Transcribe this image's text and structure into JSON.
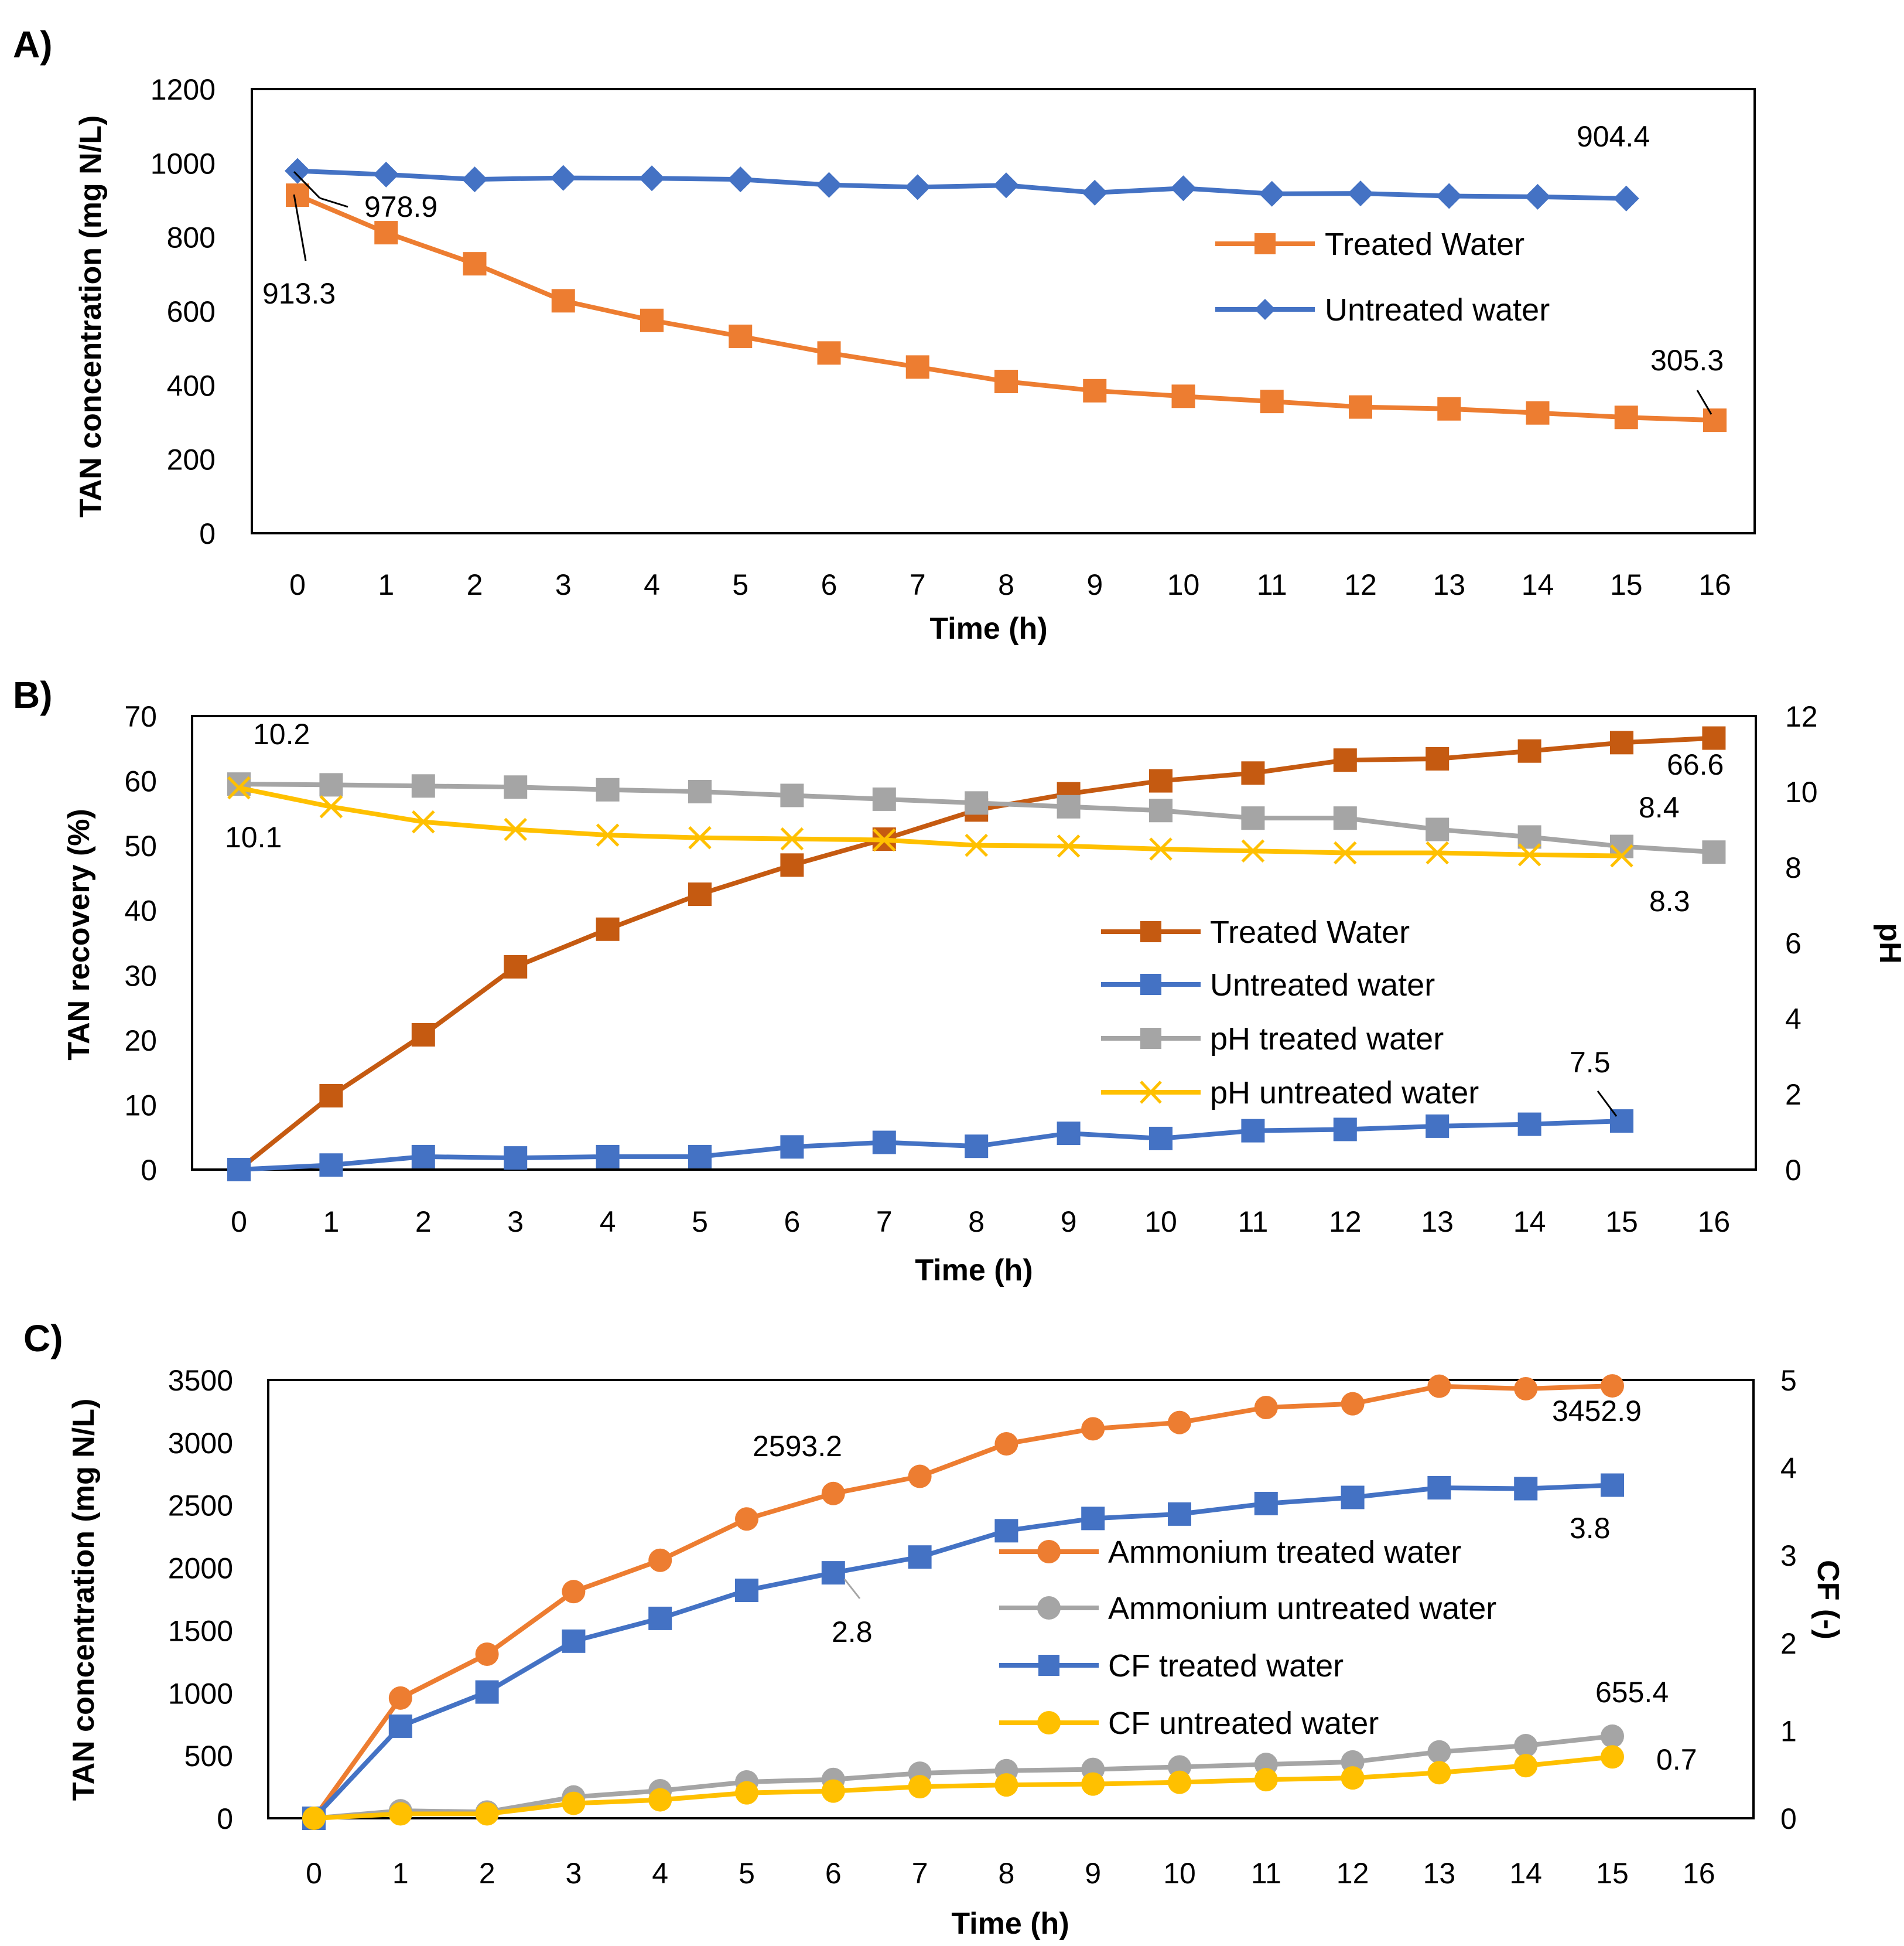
{
  "chart_data": [
    {
      "panel": "A)",
      "type": "line",
      "xlabel": "Time (h)",
      "ylabel": "TAN concentration (mg N/L)",
      "ylim": [
        0,
        1200
      ],
      "yticks": [
        0,
        200,
        400,
        600,
        800,
        1000,
        1200
      ],
      "xticks": [
        0,
        1,
        2,
        3,
        4,
        5,
        6,
        7,
        8,
        9,
        10,
        11,
        12,
        13,
        14,
        15,
        16
      ],
      "legend_position": "upper-right",
      "series": [
        {
          "name": "Treated Water",
          "color": "#ED7D31",
          "marker": "square",
          "x": [
            0,
            1,
            2,
            3,
            4,
            5,
            6,
            7,
            8,
            9,
            10,
            11,
            12,
            13,
            14,
            15,
            16
          ],
          "values": [
            913.3,
            812,
            728,
            628,
            575,
            532,
            487,
            449,
            410,
            385,
            370,
            356,
            341,
            336,
            325,
            313,
            305.3
          ]
        },
        {
          "name": "Untreated water",
          "color": "#4472C4",
          "marker": "diamond",
          "x": [
            0,
            1,
            2,
            3,
            4,
            5,
            6,
            7,
            8,
            9,
            10,
            11,
            12,
            13,
            14,
            15
          ],
          "values": [
            978.9,
            969,
            956,
            960,
            959,
            956,
            941,
            935,
            940,
            920,
            932,
            917,
            918,
            911,
            909,
            904.4
          ]
        }
      ],
      "annotations": [
        "978.9",
        "913.3",
        "904.4",
        "305.3"
      ]
    },
    {
      "panel": "B)",
      "type": "line",
      "xlabel": "Time (h)",
      "ylabel": "TAN recovery (%)",
      "y2label": "pH",
      "ylim": [
        0,
        70
      ],
      "y2lim": [
        0,
        12
      ],
      "yticks": [
        0,
        10,
        20,
        30,
        40,
        50,
        60,
        70
      ],
      "y2ticks": [
        0,
        2,
        4,
        6,
        8,
        10,
        12
      ],
      "xticks": [
        0,
        1,
        2,
        3,
        4,
        5,
        6,
        7,
        8,
        9,
        10,
        11,
        12,
        13,
        14,
        15,
        16
      ],
      "legend_position": "center-right",
      "series": [
        {
          "name": "Treated Water",
          "color": "#C55A11",
          "marker": "square",
          "axis": "left",
          "x": [
            0,
            1,
            2,
            3,
            4,
            5,
            6,
            7,
            8,
            9,
            10,
            11,
            12,
            13,
            14,
            15,
            16
          ],
          "values": [
            0,
            11.4,
            20.8,
            31.3,
            37.1,
            42.5,
            47.0,
            51.0,
            55.5,
            58.0,
            60.0,
            61.2,
            63.2,
            63.4,
            64.6,
            65.9,
            66.6
          ]
        },
        {
          "name": "Untreated water",
          "color": "#4472C4",
          "marker": "square",
          "axis": "left",
          "x": [
            0,
            1,
            2,
            3,
            4,
            5,
            6,
            7,
            8,
            9,
            10,
            11,
            12,
            13,
            14,
            15
          ],
          "values": [
            0,
            0.7,
            2.0,
            1.8,
            2.0,
            2.0,
            3.5,
            4.2,
            3.6,
            5.6,
            4.8,
            6.0,
            6.2,
            6.7,
            7.0,
            7.5
          ]
        },
        {
          "name": "pH treated water",
          "color": "#A5A5A5",
          "marker": "square",
          "axis": "right",
          "x": [
            0,
            1,
            2,
            3,
            4,
            5,
            6,
            7,
            8,
            9,
            10,
            11,
            12,
            13,
            14,
            15,
            16
          ],
          "values": [
            10.2,
            10.18,
            10.15,
            10.12,
            10.05,
            10.0,
            9.9,
            9.8,
            9.7,
            9.6,
            9.5,
            9.3,
            9.3,
            9.0,
            8.8,
            8.55,
            8.4
          ]
        },
        {
          "name": "pH untreated water",
          "color": "#FFC000",
          "marker": "x",
          "axis": "right",
          "x": [
            0,
            1,
            2,
            3,
            4,
            5,
            6,
            7,
            8,
            9,
            10,
            11,
            12,
            13,
            14,
            15
          ],
          "values": [
            10.1,
            9.6,
            9.2,
            9.0,
            8.85,
            8.78,
            8.75,
            8.72,
            8.58,
            8.56,
            8.48,
            8.43,
            8.38,
            8.38,
            8.33,
            8.3
          ]
        }
      ],
      "annotations": [
        "10.2",
        "10.1",
        "66.6",
        "8.4",
        "8.3",
        "7.5"
      ]
    },
    {
      "panel": "C)",
      "type": "line",
      "xlabel": "Time (h)",
      "ylabel": "TAN concentration (mg N/L)",
      "y2label": "CF (-)",
      "ylim": [
        0,
        3500
      ],
      "y2lim": [
        0,
        5
      ],
      "yticks": [
        0,
        500,
        1000,
        1500,
        2000,
        2500,
        3000,
        3500
      ],
      "y2ticks": [
        0,
        1,
        2,
        3,
        4,
        5
      ],
      "xticks": [
        0,
        1,
        2,
        3,
        4,
        5,
        6,
        7,
        8,
        9,
        10,
        11,
        12,
        13,
        14,
        15,
        16
      ],
      "legend_position": "center-right",
      "series": [
        {
          "name": "Ammonium treated water",
          "color": "#ED7D31",
          "marker": "circle",
          "axis": "left",
          "x": [
            0,
            1,
            2,
            3,
            4,
            5,
            6,
            7,
            8,
            9,
            10,
            11,
            12,
            13,
            14,
            15
          ],
          "values": [
            0,
            960,
            1310,
            1810,
            2060,
            2390,
            2593.2,
            2730,
            2990,
            3110,
            3160,
            3280,
            3310,
            3450,
            3430,
            3452.9
          ]
        },
        {
          "name": "Ammonium untreated water",
          "color": "#A5A5A5",
          "marker": "circle",
          "axis": "left",
          "x": [
            0,
            1,
            2,
            3,
            4,
            5,
            6,
            7,
            8,
            9,
            10,
            11,
            12,
            13,
            14,
            15
          ],
          "values": [
            0,
            60,
            50,
            170,
            220,
            290,
            310,
            360,
            380,
            390,
            410,
            430,
            450,
            530,
            580,
            655.4
          ]
        },
        {
          "name": "CF treated water",
          "color": "#4472C4",
          "marker": "square",
          "axis": "right",
          "x": [
            0,
            1,
            2,
            3,
            4,
            5,
            6,
            7,
            8,
            9,
            10,
            11,
            12,
            13,
            14,
            15
          ],
          "values": [
            0,
            1.05,
            1.44,
            2.02,
            2.28,
            2.6,
            2.8,
            2.98,
            3.28,
            3.42,
            3.47,
            3.59,
            3.66,
            3.77,
            3.76,
            3.8
          ]
        },
        {
          "name": "CF untreated water",
          "color": "#FFC000",
          "marker": "circle",
          "axis": "right",
          "x": [
            0,
            1,
            2,
            3,
            4,
            5,
            6,
            7,
            8,
            9,
            10,
            11,
            12,
            13,
            14,
            15
          ],
          "values": [
            0,
            0.05,
            0.05,
            0.17,
            0.21,
            0.29,
            0.31,
            0.36,
            0.38,
            0.39,
            0.41,
            0.44,
            0.46,
            0.52,
            0.6,
            0.7
          ]
        }
      ],
      "annotations": [
        "2593.2",
        "3452.9",
        "3.8",
        "2.8",
        "655.4",
        "0.7"
      ]
    }
  ]
}
